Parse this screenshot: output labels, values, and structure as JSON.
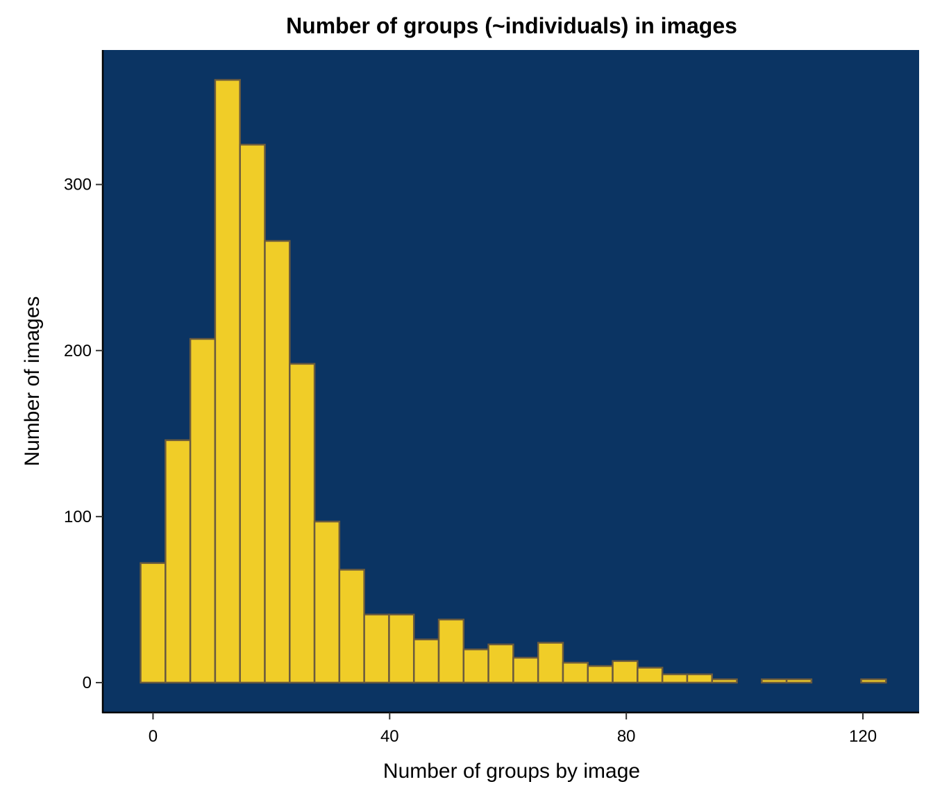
{
  "chart_data": {
    "type": "bar",
    "title": "Number of groups (~individuals) in images",
    "xlabel": "Number of groups by image",
    "ylabel": "Number of images",
    "xlim": [
      -8.5,
      129.5
    ],
    "ylim": [
      -18,
      381
    ],
    "x_ticks": [
      0,
      40,
      80,
      120
    ],
    "y_ticks": [
      0,
      100,
      200,
      300
    ],
    "bin_width": 4.2,
    "bins": [
      {
        "start": -2.1,
        "end": 2.1,
        "count": 72
      },
      {
        "start": 2.1,
        "end": 6.3,
        "count": 146
      },
      {
        "start": 6.3,
        "end": 10.5,
        "count": 207
      },
      {
        "start": 10.5,
        "end": 14.7,
        "count": 363
      },
      {
        "start": 14.7,
        "end": 18.9,
        "count": 324
      },
      {
        "start": 18.9,
        "end": 23.1,
        "count": 266
      },
      {
        "start": 23.1,
        "end": 27.3,
        "count": 192
      },
      {
        "start": 27.3,
        "end": 31.5,
        "count": 97
      },
      {
        "start": 31.5,
        "end": 35.7,
        "count": 68
      },
      {
        "start": 35.7,
        "end": 39.9,
        "count": 41
      },
      {
        "start": 39.9,
        "end": 44.1,
        "count": 41
      },
      {
        "start": 44.1,
        "end": 48.3,
        "count": 26
      },
      {
        "start": 48.3,
        "end": 52.5,
        "count": 38
      },
      {
        "start": 52.5,
        "end": 56.7,
        "count": 20
      },
      {
        "start": 56.7,
        "end": 60.9,
        "count": 23
      },
      {
        "start": 60.9,
        "end": 65.1,
        "count": 15
      },
      {
        "start": 65.1,
        "end": 69.3,
        "count": 24
      },
      {
        "start": 69.3,
        "end": 73.5,
        "count": 12
      },
      {
        "start": 73.5,
        "end": 77.7,
        "count": 10
      },
      {
        "start": 77.7,
        "end": 81.9,
        "count": 13
      },
      {
        "start": 81.9,
        "end": 86.1,
        "count": 9
      },
      {
        "start": 86.1,
        "end": 90.3,
        "count": 5
      },
      {
        "start": 90.3,
        "end": 94.5,
        "count": 5
      },
      {
        "start": 94.5,
        "end": 98.7,
        "count": 2
      },
      {
        "start": 98.7,
        "end": 102.9,
        "count": 0
      },
      {
        "start": 102.9,
        "end": 107.1,
        "count": 2
      },
      {
        "start": 107.1,
        "end": 111.3,
        "count": 2
      },
      {
        "start": 111.3,
        "end": 115.5,
        "count": 0
      },
      {
        "start": 115.5,
        "end": 119.7,
        "count": 0
      },
      {
        "start": 119.7,
        "end": 123.9,
        "count": 2
      }
    ],
    "colors": {
      "panel_background": "#0b3463",
      "bar_fill": "#f0cd28",
      "bar_outline": "#6b5b3e",
      "axis_line": "#000000"
    },
    "grid": false,
    "legend": "none"
  }
}
